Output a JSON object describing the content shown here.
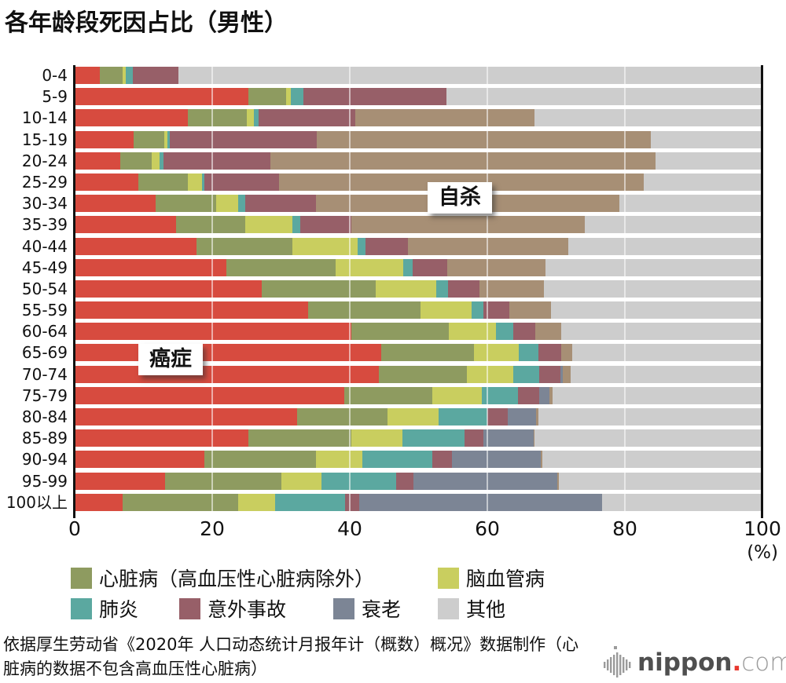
{
  "title": "各年龄段死因占比（男性）",
  "axis": {
    "unit_label": "(%)",
    "gridlines": [
      20,
      40,
      60,
      80
    ]
  },
  "annotations": {
    "cancer": "癌症",
    "suicide": "自杀"
  },
  "colors": {
    "cancer": "#D74B3F",
    "heart": "#8E9B60",
    "cerebrovascular": "#C9CE5F",
    "pneumonia": "#5BA8A0",
    "accident": "#975F68",
    "senility": "#7C8595",
    "suicide": "#A78F75",
    "other": "#CDCDCD",
    "axis": "#111111",
    "logo_red": "#E8382F"
  },
  "legend": [
    {
      "label": "心脏病（高血压性心脏病除外）",
      "color": "#8E9B60"
    },
    {
      "label": "脑血管病",
      "color": "#C9CE5F"
    },
    {
      "label": "肺炎",
      "color": "#5BA8A0"
    },
    {
      "label": "意外事故",
      "color": "#975F68"
    },
    {
      "label": "衰老",
      "color": "#7C8595"
    },
    {
      "label": "其他",
      "color": "#CDCDCD"
    }
  ],
  "chart_data": {
    "type": "bar",
    "orientation": "horizontal-stacked",
    "title": "各年龄段死因占比（男性）",
    "unit": "%",
    "xlim": [
      0,
      100
    ],
    "xticks": [
      0,
      20,
      40,
      60,
      80,
      100
    ],
    "grid": true,
    "categories": [
      "0-4",
      "5-9",
      "10-14",
      "15-19",
      "20-24",
      "25-29",
      "30-34",
      "35-39",
      "40-44",
      "45-49",
      "50-54",
      "55-59",
      "60-64",
      "65-69",
      "70-74",
      "75-79",
      "80-84",
      "85-89",
      "90-94",
      "95-99",
      "100以上"
    ],
    "series": [
      {
        "name": "癌症",
        "color": "#D74B3F",
        "values": [
          3.6,
          25.3,
          16.4,
          8.6,
          6.6,
          9.3,
          11.8,
          14.7,
          17.7,
          22.1,
          27.2,
          33.9,
          40.2,
          44.6,
          44.2,
          39.2,
          32.3,
          25.3,
          18.9,
          13.1,
          7.0
        ]
      },
      {
        "name": "心脏病（高血压性心脏病除外）",
        "color": "#8E9B60",
        "values": [
          3.4,
          5.4,
          8.6,
          4.4,
          4.6,
          7.1,
          8.8,
          10.1,
          13.9,
          15.8,
          16.6,
          16.4,
          14.2,
          13.4,
          12.8,
          12.8,
          13.2,
          14.9,
          16.2,
          17.0,
          16.8
        ]
      },
      {
        "name": "脑血管病",
        "color": "#C9CE5F",
        "values": [
          0.4,
          0.7,
          1.1,
          0.5,
          1.1,
          2.1,
          3.2,
          6.8,
          9.5,
          9.9,
          8.8,
          7.4,
          6.9,
          6.6,
          6.8,
          7.2,
          7.4,
          7.5,
          6.7,
          5.8,
          5.4
        ]
      },
      {
        "name": "肺炎",
        "color": "#5BA8A0",
        "values": [
          1.0,
          1.9,
          0.6,
          0.3,
          0.6,
          0.4,
          1.0,
          1.2,
          1.2,
          1.3,
          1.7,
          1.7,
          2.5,
          2.8,
          3.7,
          5.2,
          7.1,
          9.0,
          10.2,
          10.8,
          10.1
        ]
      },
      {
        "name": "意外事故",
        "color": "#975F68",
        "values": [
          6.7,
          20.7,
          14.1,
          21.4,
          15.5,
          10.8,
          10.3,
          7.4,
          6.1,
          5.1,
          4.6,
          3.8,
          3.2,
          3.3,
          3.1,
          3.1,
          3.0,
          2.7,
          2.9,
          2.6,
          2.1
        ]
      },
      {
        "name": "衰老",
        "color": "#7C8595",
        "values": [
          0,
          0,
          0,
          0,
          0,
          0,
          0,
          0,
          0,
          0,
          0,
          0,
          0,
          0,
          0.4,
          1.5,
          4.1,
          7.3,
          12.9,
          20.9,
          35.3
        ]
      },
      {
        "name": "自杀",
        "color": "#A78F75",
        "values": [
          0,
          0,
          26.1,
          48.6,
          56.0,
          53.0,
          44.1,
          34.0,
          23.4,
          14.3,
          9.3,
          6.0,
          3.7,
          1.6,
          1.1,
          0.5,
          0.3,
          0.2,
          0.2,
          0.2,
          0
        ]
      },
      {
        "name": "其他",
        "color": "#CDCDCD",
        "values": [
          84.9,
          46.0,
          33.1,
          16.2,
          15.6,
          17.3,
          20.8,
          25.8,
          28.2,
          31.5,
          31.8,
          30.8,
          29.3,
          27.7,
          27.9,
          30.5,
          32.6,
          33.1,
          32.0,
          29.6,
          23.3
        ]
      }
    ]
  },
  "source": {
    "line1": "依据厚生劳动省《2020年 人口动态统计月报年计（概数）概况》数据制作（心",
    "line2": "脏病的数据不包含高血压性心脏病）"
  },
  "logo": {
    "name": "nippon",
    "dot": ".",
    "tld": "com"
  }
}
